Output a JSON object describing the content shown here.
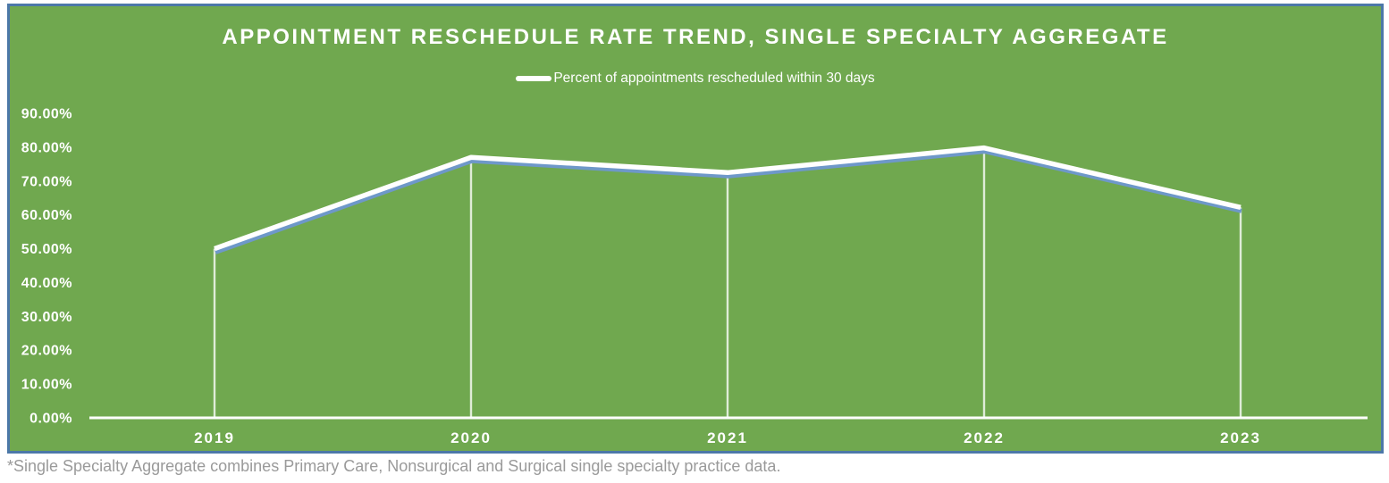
{
  "chart_data": {
    "type": "line",
    "title": "APPOINTMENT RESCHEDULE RATE TREND, SINGLE SPECIALTY AGGREGATE",
    "categories": [
      "2019",
      "2020",
      "2021",
      "2022",
      "2023"
    ],
    "series": [
      {
        "name": "Percent of appointments rescheduled within 30 days",
        "values": [
          50.0,
          77.0,
          72.5,
          79.8,
          62.2
        ]
      }
    ],
    "ylim": [
      0,
      90
    ],
    "y_tick_step": 10,
    "y_tick_labels": [
      "0.00%",
      "10.00%",
      "20.00%",
      "30.00%",
      "40.00%",
      "50.00%",
      "60.00%",
      "70.00%",
      "80.00%",
      "90.00%"
    ],
    "xlabel": "",
    "ylabel": "",
    "grid": false,
    "legend_position": "top-center",
    "footnote": "*Single Specialty Aggregate combines Primary Care, Nonsurgical and Surgical single specialty practice data.",
    "colors": {
      "panel_background": "#70A84F",
      "panel_border": "#4C78A8",
      "line": "#FFFFFF",
      "line_shadow": "#6E98C9",
      "axis": "#FFFFFF",
      "drop_line": "rgba(255,255,255,0.78)",
      "label_text": "#FFFFFF",
      "footnote_text": "#9A9A9A"
    }
  }
}
